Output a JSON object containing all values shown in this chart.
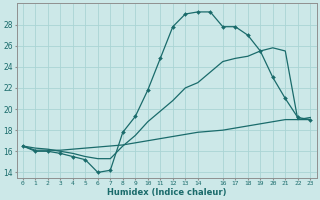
{
  "xlabel": "Humidex (Indice chaleur)",
  "bg_color": "#cce8e8",
  "grid_color": "#aad4d4",
  "line_color": "#1a6b6b",
  "xlim": [
    -0.5,
    23.5
  ],
  "ylim": [
    13.5,
    30.0
  ],
  "xticks": [
    0,
    1,
    2,
    3,
    4,
    5,
    6,
    7,
    8,
    9,
    10,
    11,
    12,
    13,
    14,
    16,
    17,
    18,
    19,
    20,
    21,
    22,
    23
  ],
  "yticks": [
    14,
    16,
    18,
    20,
    22,
    24,
    26,
    28
  ],
  "line1_x": [
    0,
    1,
    2,
    3,
    4,
    5,
    6,
    7,
    8,
    9,
    10,
    11,
    12,
    13,
    14,
    15,
    16,
    17,
    18,
    19,
    20,
    21,
    22,
    23
  ],
  "line1_y": [
    16.5,
    16.0,
    16.0,
    15.8,
    15.5,
    15.2,
    14.0,
    14.2,
    17.8,
    19.3,
    21.8,
    24.8,
    27.8,
    29.0,
    29.2,
    29.2,
    27.8,
    27.8,
    27.0,
    25.5,
    23.0,
    21.0,
    19.2,
    19.0
  ],
  "line2_x": [
    0,
    1,
    2,
    3,
    4,
    5,
    6,
    7,
    8,
    9,
    10,
    11,
    12,
    13,
    14,
    15,
    16,
    17,
    18,
    19,
    20,
    21,
    22,
    23
  ],
  "line2_y": [
    16.5,
    16.3,
    16.2,
    16.0,
    15.8,
    15.5,
    15.3,
    15.3,
    16.5,
    17.5,
    18.8,
    19.8,
    20.8,
    22.0,
    22.5,
    23.5,
    24.5,
    24.8,
    25.0,
    25.5,
    25.8,
    25.5,
    19.0,
    19.0
  ],
  "line3_x": [
    0,
    1,
    2,
    3,
    4,
    5,
    6,
    7,
    8,
    9,
    10,
    11,
    12,
    13,
    14,
    15,
    16,
    17,
    18,
    19,
    20,
    21,
    22,
    23
  ],
  "line3_y": [
    16.5,
    16.1,
    16.1,
    16.1,
    16.2,
    16.3,
    16.4,
    16.5,
    16.6,
    16.8,
    17.0,
    17.2,
    17.4,
    17.6,
    17.8,
    17.9,
    18.0,
    18.2,
    18.4,
    18.6,
    18.8,
    19.0,
    19.0,
    19.2
  ]
}
